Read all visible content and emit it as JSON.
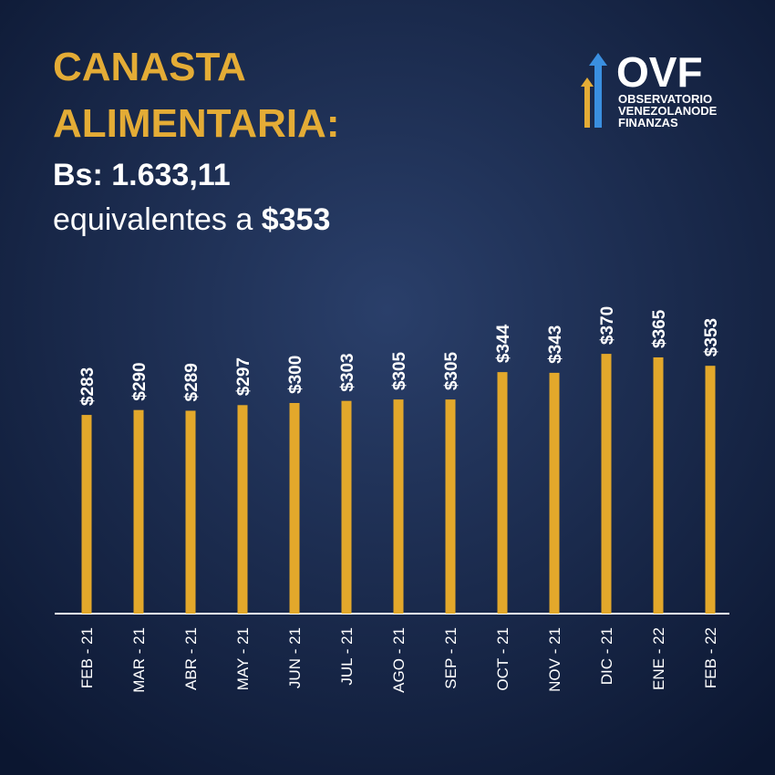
{
  "header": {
    "title_lines": [
      "CANASTA",
      "ALIMENTARIA:"
    ],
    "amount": "Bs: 1.633,11",
    "equivalent_text": "equivalentes a",
    "equivalent_value": "$353"
  },
  "logo": {
    "acronym": "OVF",
    "line1": "OBSERVATORIO",
    "line2": "VENEZOLANO",
    "line2b": "DE",
    "line3": "FINANZAS"
  },
  "chart_data": {
    "type": "bar",
    "color": "#e3a82b",
    "categories": [
      "FEB - 21",
      "MAR - 21",
      "ABR - 21",
      "MAY - 21",
      "JUN - 21",
      "JUL - 21",
      "AGO - 21",
      "SEP - 21",
      "OCT - 21",
      "NOV - 21",
      "DIC - 21",
      "ENE - 22",
      "FEB - 22"
    ],
    "values": [
      283,
      290,
      289,
      297,
      300,
      303,
      305,
      305,
      344,
      343,
      370,
      365,
      353
    ],
    "value_labels": [
      "$283",
      "$290",
      "$289",
      "$297",
      "$300",
      "$303",
      "$305",
      "$305",
      "$344",
      "$343",
      "$370",
      "$365",
      "$353"
    ]
  }
}
